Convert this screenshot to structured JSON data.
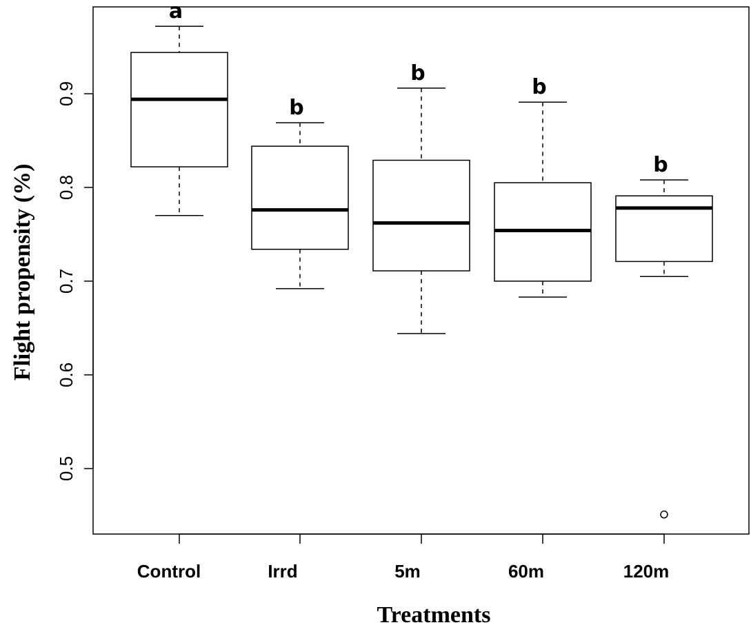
{
  "chart_data": {
    "type": "box",
    "xlabel": "Treatments",
    "ylabel": "Flight propensity (%)",
    "ylim": [
      0.41,
      0.975
    ],
    "yticks": [
      0.5,
      0.6,
      0.7,
      0.8,
      0.9
    ],
    "grid": false,
    "categories": [
      "Control",
      "Irrd",
      "5m",
      "60m",
      "120m"
    ],
    "boxes": [
      {
        "category": "Control",
        "whisker_low": 0.77,
        "q1": 0.822,
        "median": 0.894,
        "q3": 0.944,
        "whisker_high": 0.972,
        "letter": "a",
        "outliers": []
      },
      {
        "category": "Irrd",
        "whisker_low": 0.692,
        "q1": 0.734,
        "median": 0.776,
        "q3": 0.844,
        "whisker_high": 0.869,
        "letter": "b",
        "outliers": []
      },
      {
        "category": "5m",
        "whisker_low": 0.644,
        "q1": 0.711,
        "median": 0.762,
        "q3": 0.829,
        "whisker_high": 0.906,
        "letter": "b",
        "outliers": []
      },
      {
        "category": "60m",
        "whisker_low": 0.683,
        "q1": 0.7,
        "median": 0.754,
        "q3": 0.805,
        "whisker_high": 0.891,
        "letter": "b",
        "outliers": []
      },
      {
        "category": "120m",
        "whisker_low": 0.705,
        "q1": 0.721,
        "median": 0.778,
        "q3": 0.791,
        "whisker_high": 0.808,
        "letter": "b",
        "outliers": [
          0.451
        ]
      }
    ]
  }
}
